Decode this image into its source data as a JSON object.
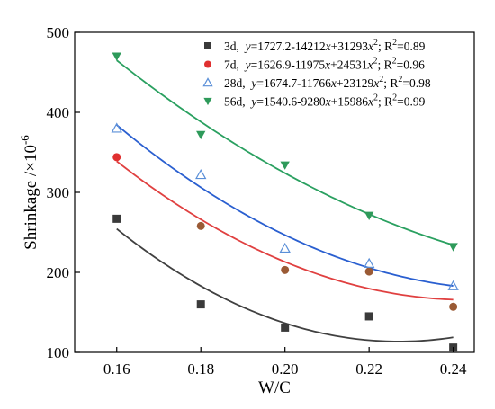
{
  "chart_data": {
    "type": "scatter",
    "xlabel": "W/C",
    "ylabel": "Shrinkage /×10",
    "ylabel_exponent": "-6",
    "xlim": [
      0.15,
      0.245
    ],
    "ylim": [
      100,
      500
    ],
    "xticks": [
      0.16,
      0.18,
      0.2,
      0.22,
      0.24
    ],
    "xtick_labels": [
      "0.16",
      "0.18",
      "0.20",
      "0.22",
      "0.24"
    ],
    "yticks": [
      100,
      200,
      300,
      400,
      500
    ],
    "ytick_labels": [
      "100",
      "200",
      "300",
      "400",
      "500"
    ],
    "legend_position": "top-right",
    "series": [
      {
        "name": "3d",
        "marker": "square",
        "color": "#3a3a3a",
        "line_color": "#404040",
        "x": [
          0.16,
          0.18,
          0.2,
          0.22,
          0.24
        ],
        "y": [
          267,
          160,
          131,
          145,
          106
        ],
        "fit": {
          "a": 1727.2,
          "b": -14212,
          "c": 31293
        },
        "legend_label": "3d,",
        "equation_parts": [
          "y",
          "=1727.2-14212",
          "x",
          "+31293",
          "x",
          "2",
          "; R",
          "2",
          "=0.89"
        ]
      },
      {
        "name": "7d",
        "marker": "circle",
        "color": "#e03030",
        "point_colors": [
          "#e03030",
          "#9a5a35",
          "#9a5a35",
          "#9a5a35",
          "#9a5a35"
        ],
        "line_color": "#e04040",
        "x": [
          0.16,
          0.18,
          0.2,
          0.22,
          0.24
        ],
        "y": [
          344,
          258,
          203,
          201,
          157
        ],
        "fit": {
          "a": 1626.9,
          "b": -11975,
          "c": 24531
        },
        "legend_label": "7d,",
        "equation_parts": [
          "y",
          "=1626.9-11975",
          "x",
          "+24531",
          "x",
          "2",
          "; R",
          "2",
          "=0.96"
        ]
      },
      {
        "name": "28d",
        "marker": "triangle-open",
        "color": "#5a8fd8",
        "line_color": "#2a5fd0",
        "x": [
          0.16,
          0.18,
          0.2,
          0.22,
          0.24
        ],
        "y": [
          380,
          322,
          230,
          211,
          183
        ],
        "fit": {
          "a": 1674.7,
          "b": -11766,
          "c": 23129
        },
        "legend_label": "28d,",
        "equation_parts": [
          "y",
          "=1674.7-11766",
          "x",
          "+23129",
          "x",
          "2",
          "; R",
          "2",
          "=0.98"
        ]
      },
      {
        "name": "56d",
        "marker": "triangle-down",
        "color": "#2e9a5a",
        "line_color": "#2aa060",
        "x": [
          0.16,
          0.18,
          0.2,
          0.22,
          0.24
        ],
        "y": [
          470,
          372,
          334,
          271,
          232
        ],
        "fit": {
          "a": 1540.6,
          "b": -9280,
          "c": 15986
        },
        "legend_label": "56d,",
        "equation_parts": [
          "y",
          "=1540.6-9280",
          "x",
          "+15986",
          "x",
          "2",
          "; R",
          "2",
          "=0.99"
        ]
      }
    ]
  }
}
